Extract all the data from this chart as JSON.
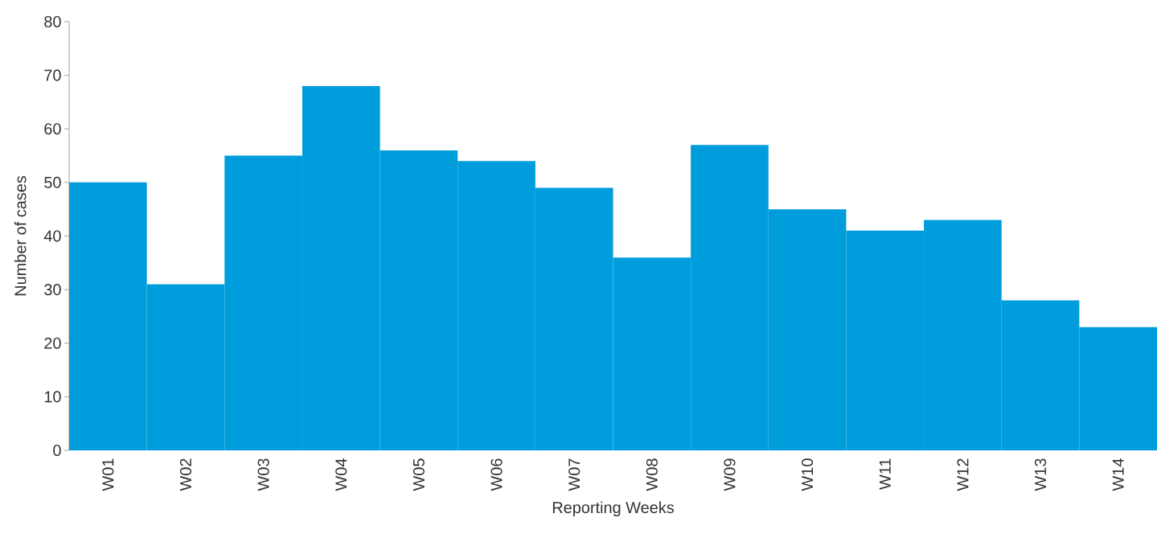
{
  "chart_data": {
    "type": "bar",
    "xlabel": "Reporting Weeks",
    "ylabel": "Number of cases",
    "categories": [
      "W01",
      "W02",
      "W03",
      "W04",
      "W05",
      "W06",
      "W07",
      "W08",
      "W09",
      "W10",
      "W11",
      "W12",
      "W13",
      "W14"
    ],
    "values": [
      50,
      31,
      55,
      68,
      56,
      54,
      49,
      36,
      57,
      45,
      41,
      43,
      28,
      23
    ],
    "color": "#009ddc",
    "ylim": [
      0,
      80
    ],
    "yticks": [
      0,
      10,
      20,
      30,
      40,
      50,
      60,
      70,
      80
    ],
    "grid": false
  }
}
